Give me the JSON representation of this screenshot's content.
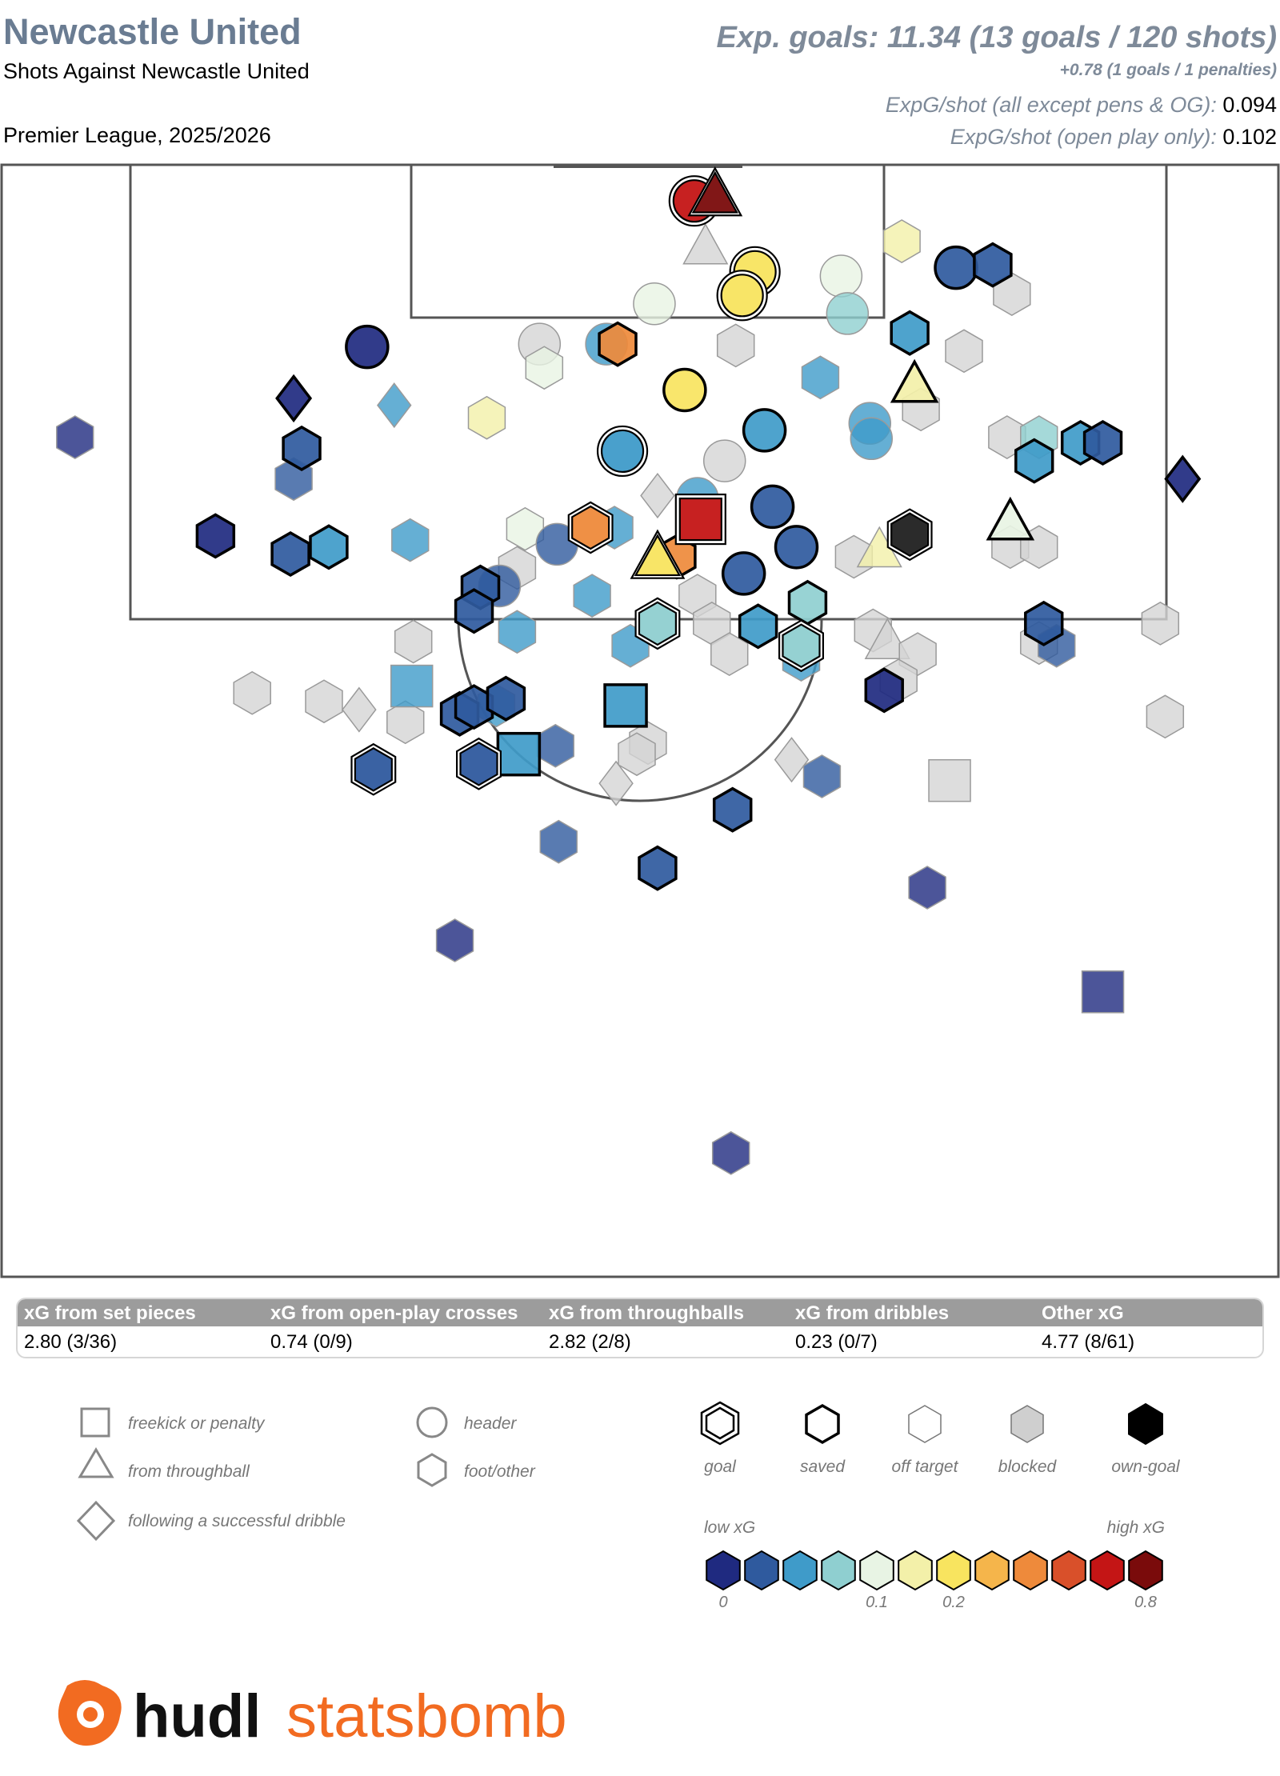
{
  "header": {
    "team": "Newcastle United",
    "subtitle": "Shots Against Newcastle United",
    "competition": "Premier League, 2025/2026",
    "xg_total": "Exp. goals: 11.34 (13 goals / 120 shots)",
    "penalties": "+0.78 (1 goals / 1 penalties)",
    "expg_shot_label": "ExpG/shot (all except pens & OG):",
    "expg_shot_value": "0.094",
    "expg_open_label": "ExpG/shot (open play only):",
    "expg_open_value": "0.102"
  },
  "stats_table": {
    "columns": [
      {
        "label": "xG from set pieces",
        "value": "2.80 (3/36)"
      },
      {
        "label": "xG from open-play crosses",
        "value": "0.74 (0/9)"
      },
      {
        "label": "xG from throughballs",
        "value": "2.82 (2/8)"
      },
      {
        "label": "xG from dribbles",
        "value": "0.23 (0/7)"
      },
      {
        "label": "Other xG",
        "value": "4.77 (8/61)"
      }
    ]
  },
  "legend": {
    "shapes": [
      {
        "label": "freekick or penalty",
        "icon": "square"
      },
      {
        "label": "from throughball",
        "icon": "triangle"
      },
      {
        "label": "following a successful dribble",
        "icon": "diamond"
      },
      {
        "label": "header",
        "icon": "circle"
      },
      {
        "label": "foot/other",
        "icon": "hexagon"
      }
    ],
    "outcomes": [
      {
        "label": "goal"
      },
      {
        "label": "saved"
      },
      {
        "label": "off target"
      },
      {
        "label": "blocked"
      },
      {
        "label": "own-goal"
      }
    ],
    "low_label": "low xG",
    "high_label": "high xG",
    "scale_colors": [
      "#1f2a80",
      "#2f5a9e",
      "#3f9bc9",
      "#8fcfd0",
      "#e8f4e4",
      "#f3f0a9",
      "#f8e45f",
      "#f5b54b",
      "#ee8a3b",
      "#d9502a",
      "#c41515",
      "#7a0b0b"
    ],
    "scale_ticks": [
      "0",
      "0.1",
      "0.2",
      "0.8"
    ]
  },
  "logo": {
    "word1": "hudl",
    "word2": "statsbomb"
  },
  "chart_data": {
    "type": "scatter",
    "title": "Shots Against Newcastle United",
    "units": "x: yards from left touchline, y: yards from goal line",
    "encoding": {
      "color": "xG",
      "shape": "shot type",
      "outline": "outcome"
    },
    "shots": [
      {
        "x": 43.4,
        "y": 2.6,
        "xg": 0.74,
        "shape": "circle",
        "outcome": "goal"
      },
      {
        "x": 44.7,
        "y": 2.3,
        "xg": 0.75,
        "shape": "triangle",
        "outcome": "goal"
      },
      {
        "x": 44.1,
        "y": 6.0,
        "xg": 0.62,
        "shape": "triangle",
        "outcome": "blocked"
      },
      {
        "x": 47.2,
        "y": 7.7,
        "xg": 0.2,
        "shape": "circle",
        "outcome": "goal"
      },
      {
        "x": 46.4,
        "y": 9.4,
        "xg": 0.2,
        "shape": "circle",
        "outcome": "goal"
      },
      {
        "x": 40.9,
        "y": 10.0,
        "xg": 0.14,
        "shape": "circle",
        "outcome": "off target"
      },
      {
        "x": 52.6,
        "y": 8.0,
        "xg": 0.12,
        "shape": "circle",
        "outcome": "off target"
      },
      {
        "x": 53.0,
        "y": 10.7,
        "xg": 0.08,
        "shape": "circle",
        "outcome": "off target"
      },
      {
        "x": 56.4,
        "y": 5.5,
        "xg": 0.17,
        "shape": "hexagon",
        "outcome": "off target"
      },
      {
        "x": 59.8,
        "y": 7.4,
        "xg": 0.04,
        "shape": "circle",
        "outcome": "saved"
      },
      {
        "x": 62.1,
        "y": 7.2,
        "xg": 0.03,
        "shape": "hexagon",
        "outcome": "saved"
      },
      {
        "x": 63.3,
        "y": 9.3,
        "xg": null,
        "shape": "hexagon",
        "outcome": "blocked"
      },
      {
        "x": 33.7,
        "y": 12.9,
        "xg": null,
        "shape": "circle",
        "outcome": "blocked"
      },
      {
        "x": 37.9,
        "y": 12.9,
        "xg": 0.06,
        "shape": "circle",
        "outcome": "off target"
      },
      {
        "x": 38.6,
        "y": 12.9,
        "xg": 0.36,
        "shape": "hexagon",
        "outcome": "saved"
      },
      {
        "x": 34.0,
        "y": 14.6,
        "xg": 0.13,
        "shape": "hexagon",
        "outcome": "off target"
      },
      {
        "x": 46.0,
        "y": 13.0,
        "xg": null,
        "shape": "hexagon",
        "outcome": "blocked"
      },
      {
        "x": 42.8,
        "y": 16.2,
        "xg": 0.2,
        "shape": "circle",
        "outcome": "saved"
      },
      {
        "x": 51.3,
        "y": 15.3,
        "xg": 0.07,
        "shape": "hexagon",
        "outcome": "off target"
      },
      {
        "x": 56.9,
        "y": 12.1,
        "xg": 0.07,
        "shape": "hexagon",
        "outcome": "saved"
      },
      {
        "x": 60.3,
        "y": 13.4,
        "xg": null,
        "shape": "hexagon",
        "outcome": "blocked"
      },
      {
        "x": 57.2,
        "y": 15.9,
        "xg": 0.18,
        "shape": "triangle",
        "outcome": "saved"
      },
      {
        "x": 57.6,
        "y": 17.6,
        "xg": null,
        "shape": "hexagon",
        "outcome": "blocked"
      },
      {
        "x": 22.9,
        "y": 13.1,
        "xg": 0.02,
        "shape": "circle",
        "outcome": "saved"
      },
      {
        "x": 18.3,
        "y": 16.8,
        "xg": 0.02,
        "shape": "diamond",
        "outcome": "saved"
      },
      {
        "x": 24.6,
        "y": 17.3,
        "xg": 0.06,
        "shape": "diamond",
        "outcome": "off target"
      },
      {
        "x": 30.4,
        "y": 18.2,
        "xg": 0.16,
        "shape": "hexagon",
        "outcome": "off target"
      },
      {
        "x": 18.8,
        "y": 20.4,
        "xg": 0.04,
        "shape": "hexagon",
        "outcome": "saved"
      },
      {
        "x": 18.3,
        "y": 22.6,
        "xg": 0.04,
        "shape": "hexagon",
        "outcome": "off target"
      },
      {
        "x": 4.6,
        "y": 19.6,
        "xg": 0.02,
        "shape": "hexagon",
        "outcome": "off target"
      },
      {
        "x": 38.9,
        "y": 20.6,
        "xg": 0.05,
        "shape": "circle",
        "outcome": "goal"
      },
      {
        "x": 47.8,
        "y": 19.1,
        "xg": 0.07,
        "shape": "circle",
        "outcome": "saved"
      },
      {
        "x": 45.3,
        "y": 21.3,
        "xg": null,
        "shape": "circle",
        "outcome": "blocked"
      },
      {
        "x": 54.4,
        "y": 18.6,
        "xg": 0.05,
        "shape": "circle",
        "outcome": "off target"
      },
      {
        "x": 54.5,
        "y": 19.7,
        "xg": 0.05,
        "shape": "circle",
        "outcome": "off target"
      },
      {
        "x": 41.1,
        "y": 23.8,
        "xg": null,
        "shape": "diamond",
        "outcome": "blocked"
      },
      {
        "x": 43.6,
        "y": 24.0,
        "xg": 0.05,
        "shape": "circle",
        "outcome": "off target"
      },
      {
        "x": 43.8,
        "y": 25.5,
        "xg": 0.72,
        "shape": "square",
        "outcome": "goal"
      },
      {
        "x": 48.3,
        "y": 24.6,
        "xg": 0.04,
        "shape": "circle",
        "outcome": "saved"
      },
      {
        "x": 63.0,
        "y": 19.6,
        "xg": null,
        "shape": "hexagon",
        "outcome": "blocked"
      },
      {
        "x": 65.0,
        "y": 19.6,
        "xg": 0.08,
        "shape": "hexagon",
        "outcome": "off target"
      },
      {
        "x": 67.6,
        "y": 20.0,
        "xg": 0.05,
        "shape": "hexagon",
        "outcome": "saved"
      },
      {
        "x": 69.0,
        "y": 20.0,
        "xg": 0.04,
        "shape": "hexagon",
        "outcome": "saved"
      },
      {
        "x": 64.7,
        "y": 21.3,
        "xg": 0.05,
        "shape": "hexagon",
        "outcome": "saved"
      },
      {
        "x": 74.0,
        "y": 22.6,
        "xg": 0.02,
        "shape": "diamond",
        "outcome": "saved"
      },
      {
        "x": 63.2,
        "y": 25.8,
        "xg": 0.1,
        "shape": "triangle",
        "outcome": "saved"
      },
      {
        "x": 63.2,
        "y": 27.5,
        "xg": null,
        "shape": "hexagon",
        "outcome": "blocked"
      },
      {
        "x": 65.0,
        "y": 27.5,
        "xg": null,
        "shape": "hexagon",
        "outcome": "blocked"
      },
      {
        "x": 13.4,
        "y": 26.7,
        "xg": 0.02,
        "shape": "hexagon",
        "outcome": "saved"
      },
      {
        "x": 18.1,
        "y": 28.0,
        "xg": 0.04,
        "shape": "hexagon",
        "outcome": "saved"
      },
      {
        "x": 20.5,
        "y": 27.5,
        "xg": 0.07,
        "shape": "hexagon",
        "outcome": "saved"
      },
      {
        "x": 25.6,
        "y": 27.0,
        "xg": 0.06,
        "shape": "hexagon",
        "outcome": "off target"
      },
      {
        "x": 32.8,
        "y": 26.2,
        "xg": 0.14,
        "shape": "hexagon",
        "outcome": "off target"
      },
      {
        "x": 34.8,
        "y": 27.3,
        "xg": 0.03,
        "shape": "circle",
        "outcome": "off target"
      },
      {
        "x": 36.9,
        "y": 26.1,
        "xg": 0.3,
        "shape": "hexagon",
        "outcome": "goal"
      },
      {
        "x": 38.4,
        "y": 26.1,
        "xg": 0.05,
        "shape": "hexagon",
        "outcome": "off target"
      },
      {
        "x": 41.1,
        "y": 28.4,
        "xg": 0.22,
        "shape": "triangle",
        "outcome": "goal"
      },
      {
        "x": 42.3,
        "y": 28.2,
        "xg": 0.3,
        "shape": "hexagon",
        "outcome": "saved"
      },
      {
        "x": 46.5,
        "y": 29.4,
        "xg": 0.03,
        "shape": "circle",
        "outcome": "saved"
      },
      {
        "x": 49.8,
        "y": 27.5,
        "xg": 0.04,
        "shape": "circle",
        "outcome": "saved"
      },
      {
        "x": 53.4,
        "y": 28.2,
        "xg": null,
        "shape": "hexagon",
        "outcome": "blocked"
      },
      {
        "x": 56.9,
        "y": 26.6,
        "xg": null,
        "shape": "hexagon",
        "outcome": "own-goal"
      },
      {
        "x": 55.0,
        "y": 27.8,
        "xg": 0.19,
        "shape": "triangle",
        "outcome": "off target"
      },
      {
        "x": 32.3,
        "y": 29.0,
        "xg": null,
        "shape": "hexagon",
        "outcome": "blocked"
      },
      {
        "x": 31.2,
        "y": 30.3,
        "xg": 0.04,
        "shape": "circle",
        "outcome": "off target"
      },
      {
        "x": 30.0,
        "y": 30.4,
        "xg": 0.04,
        "shape": "hexagon",
        "outcome": "saved"
      },
      {
        "x": 29.6,
        "y": 32.1,
        "xg": 0.03,
        "shape": "hexagon",
        "outcome": "saved"
      },
      {
        "x": 32.3,
        "y": 33.6,
        "xg": 0.05,
        "shape": "hexagon",
        "outcome": "off target"
      },
      {
        "x": 37.0,
        "y": 31.0,
        "xg": 0.07,
        "shape": "hexagon",
        "outcome": "off target"
      },
      {
        "x": 41.1,
        "y": 33.0,
        "xg": 0.09,
        "shape": "hexagon",
        "outcome": "goal"
      },
      {
        "x": 43.6,
        "y": 31.0,
        "xg": null,
        "shape": "hexagon",
        "outcome": "blocked"
      },
      {
        "x": 44.5,
        "y": 33.0,
        "xg": null,
        "shape": "hexagon",
        "outcome": "blocked"
      },
      {
        "x": 47.4,
        "y": 33.2,
        "xg": 0.05,
        "shape": "hexagon",
        "outcome": "saved"
      },
      {
        "x": 50.5,
        "y": 31.5,
        "xg": 0.09,
        "shape": "hexagon",
        "outcome": "saved"
      },
      {
        "x": 50.1,
        "y": 34.6,
        "xg": 0.09,
        "shape": "hexagon",
        "outcome": "goal"
      },
      {
        "x": 50.1,
        "y": 35.6,
        "xg": 0.05,
        "shape": "hexagon",
        "outcome": "off target"
      },
      {
        "x": 54.6,
        "y": 33.5,
        "xg": null,
        "shape": "hexagon",
        "outcome": "blocked"
      },
      {
        "x": 55.5,
        "y": 34.4,
        "xg": null,
        "shape": "triangle",
        "outcome": "blocked"
      },
      {
        "x": 57.4,
        "y": 35.2,
        "xg": null,
        "shape": "hexagon",
        "outcome": "blocked"
      },
      {
        "x": 56.2,
        "y": 37.1,
        "xg": null,
        "shape": "hexagon",
        "outcome": "blocked"
      },
      {
        "x": 55.3,
        "y": 37.8,
        "xg": 0.02,
        "shape": "hexagon",
        "outcome": "saved"
      },
      {
        "x": 25.8,
        "y": 34.3,
        "xg": null,
        "shape": "hexagon",
        "outcome": "blocked"
      },
      {
        "x": 39.4,
        "y": 34.6,
        "xg": 0.05,
        "shape": "hexagon",
        "outcome": "off target"
      },
      {
        "x": 45.6,
        "y": 35.2,
        "xg": null,
        "shape": "hexagon",
        "outcome": "blocked"
      },
      {
        "x": 65.3,
        "y": 33.0,
        "xg": 0.04,
        "shape": "hexagon",
        "outcome": "saved"
      },
      {
        "x": 65.0,
        "y": 34.4,
        "xg": null,
        "shape": "hexagon",
        "outcome": "blocked"
      },
      {
        "x": 66.1,
        "y": 34.6,
        "xg": 0.04,
        "shape": "hexagon",
        "outcome": "off target"
      },
      {
        "x": 72.6,
        "y": 33.0,
        "xg": null,
        "shape": "hexagon",
        "outcome": "blocked"
      },
      {
        "x": 15.7,
        "y": 38.0,
        "xg": null,
        "shape": "hexagon",
        "outcome": "blocked"
      },
      {
        "x": 20.2,
        "y": 38.6,
        "xg": null,
        "shape": "hexagon",
        "outcome": "blocked"
      },
      {
        "x": 22.4,
        "y": 39.2,
        "xg": null,
        "shape": "diamond",
        "outcome": "blocked"
      },
      {
        "x": 25.3,
        "y": 40.1,
        "xg": null,
        "shape": "hexagon",
        "outcome": "blocked"
      },
      {
        "x": 25.7,
        "y": 37.5,
        "xg": 0.07,
        "shape": "square",
        "outcome": "off target"
      },
      {
        "x": 28.7,
        "y": 39.5,
        "xg": 0.04,
        "shape": "hexagon",
        "outcome": "saved"
      },
      {
        "x": 29.6,
        "y": 39.0,
        "xg": 0.04,
        "shape": "hexagon",
        "outcome": "saved"
      },
      {
        "x": 31.0,
        "y": 38.9,
        "xg": 0.05,
        "shape": "hexagon",
        "outcome": "off target"
      },
      {
        "x": 31.6,
        "y": 38.4,
        "xg": 0.03,
        "shape": "hexagon",
        "outcome": "saved"
      },
      {
        "x": 39.1,
        "y": 38.9,
        "xg": 0.07,
        "shape": "square",
        "outcome": "saved"
      },
      {
        "x": 72.9,
        "y": 39.7,
        "xg": null,
        "shape": "hexagon",
        "outcome": "blocked"
      },
      {
        "x": 34.7,
        "y": 41.8,
        "xg": 0.04,
        "shape": "hexagon",
        "outcome": "off target"
      },
      {
        "x": 32.4,
        "y": 42.4,
        "xg": 0.07,
        "shape": "square",
        "outcome": "saved"
      },
      {
        "x": 40.5,
        "y": 41.6,
        "xg": null,
        "shape": "hexagon",
        "outcome": "blocked"
      },
      {
        "x": 39.8,
        "y": 42.4,
        "xg": null,
        "shape": "hexagon",
        "outcome": "blocked"
      },
      {
        "x": 49.5,
        "y": 42.8,
        "xg": null,
        "shape": "diamond",
        "outcome": "blocked"
      },
      {
        "x": 23.3,
        "y": 43.5,
        "xg": 0.03,
        "shape": "hexagon",
        "outcome": "goal"
      },
      {
        "x": 29.9,
        "y": 43.1,
        "xg": 0.03,
        "shape": "hexagon",
        "outcome": "goal"
      },
      {
        "x": 38.5,
        "y": 44.5,
        "xg": null,
        "shape": "diamond",
        "outcome": "blocked"
      },
      {
        "x": 51.4,
        "y": 44.0,
        "xg": 0.03,
        "shape": "hexagon",
        "outcome": "off target"
      },
      {
        "x": 59.4,
        "y": 44.3,
        "xg": null,
        "shape": "square",
        "outcome": "blocked"
      },
      {
        "x": 45.8,
        "y": 46.4,
        "xg": 0.04,
        "shape": "hexagon",
        "outcome": "saved"
      },
      {
        "x": 34.9,
        "y": 48.7,
        "xg": 0.04,
        "shape": "hexagon",
        "outcome": "off target"
      },
      {
        "x": 41.1,
        "y": 50.6,
        "xg": 0.03,
        "shape": "hexagon",
        "outcome": "saved"
      },
      {
        "x": 58.0,
        "y": 52.0,
        "xg": 0.02,
        "shape": "hexagon",
        "outcome": "off target"
      },
      {
        "x": 28.4,
        "y": 55.8,
        "xg": 0.02,
        "shape": "hexagon",
        "outcome": "off target"
      },
      {
        "x": 69.0,
        "y": 59.5,
        "xg": 0.02,
        "shape": "square",
        "outcome": "off target"
      },
      {
        "x": 45.7,
        "y": 71.1,
        "xg": 0.02,
        "shape": "hexagon",
        "outcome": "off target"
      }
    ]
  }
}
